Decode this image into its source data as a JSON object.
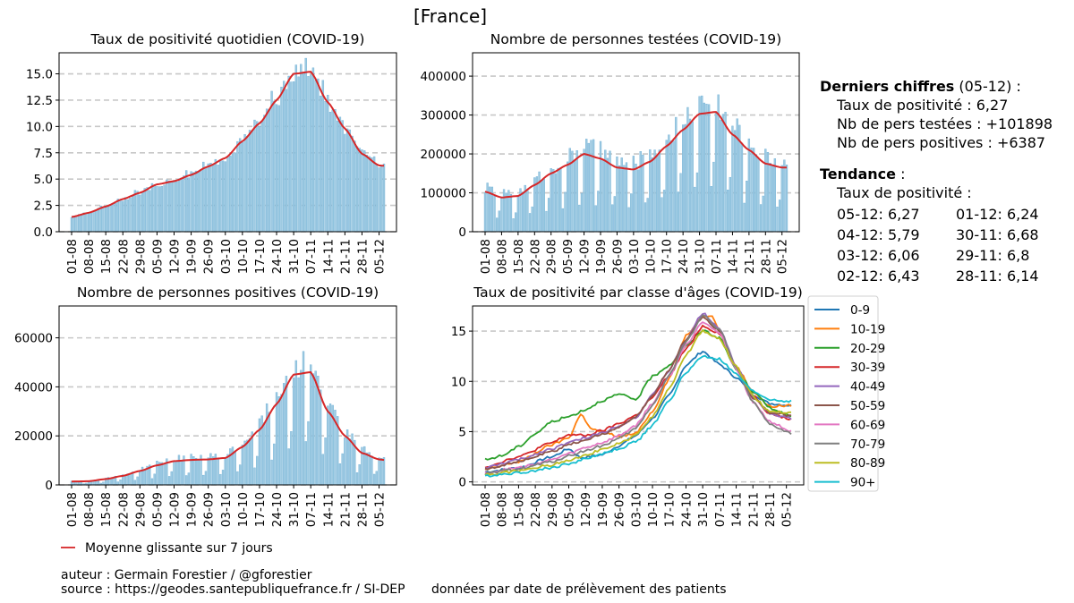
{
  "title": "[France]",
  "dates": [
    "01-08",
    "08-08",
    "15-08",
    "22-08",
    "29-08",
    "05-09",
    "12-09",
    "19-09",
    "26-09",
    "03-10",
    "10-10",
    "17-10",
    "24-10",
    "31-10",
    "07-11",
    "14-11",
    "21-11",
    "28-11",
    "05-12"
  ],
  "chart_data": [
    {
      "id": "taux",
      "type": "bar",
      "title": "Taux de positivité quotidien (COVID-19)",
      "ylim": [
        0,
        17
      ],
      "yticks": [
        0.0,
        2.5,
        5.0,
        7.5,
        10.0,
        12.5,
        15.0
      ],
      "ytick_labels": [
        "0.0",
        "2.5",
        "5.0",
        "7.5",
        "10.0",
        "12.5",
        "15.0"
      ],
      "legend_series": "Moyenne glissante sur 7 jours",
      "keypoints": [
        [
          0,
          1.4
        ],
        [
          7,
          1.8
        ],
        [
          14,
          2.4
        ],
        [
          21,
          3.1
        ],
        [
          28,
          3.7
        ],
        [
          35,
          4.5
        ],
        [
          42,
          4.8
        ],
        [
          49,
          5.4
        ],
        [
          56,
          6.2
        ],
        [
          63,
          7.0
        ],
        [
          70,
          8.6
        ],
        [
          77,
          10.3
        ],
        [
          84,
          12.5
        ],
        [
          91,
          15.0
        ],
        [
          98,
          15.2
        ],
        [
          105,
          12.3
        ],
        [
          112,
          9.8
        ],
        [
          119,
          7.4
        ],
        [
          126,
          6.3
        ],
        [
          128,
          6.27
        ]
      ]
    },
    {
      "id": "tests",
      "type": "bar",
      "title": "Nombre de personnes testées (COVID-19)",
      "ylim": [
        0,
        460000
      ],
      "yticks": [
        0,
        100000,
        200000,
        300000,
        400000
      ],
      "ytick_labels": [
        "0",
        "100000",
        "200000",
        "300000",
        "400000"
      ],
      "keypoints": [
        [
          0,
          103000
        ],
        [
          7,
          88000
        ],
        [
          14,
          92000
        ],
        [
          21,
          120000
        ],
        [
          28,
          150000
        ],
        [
          35,
          172000
        ],
        [
          42,
          200000
        ],
        [
          49,
          188000
        ],
        [
          56,
          165000
        ],
        [
          63,
          160000
        ],
        [
          70,
          180000
        ],
        [
          77,
          220000
        ],
        [
          84,
          262000
        ],
        [
          91,
          303000
        ],
        [
          98,
          308000
        ],
        [
          105,
          250000
        ],
        [
          112,
          210000
        ],
        [
          119,
          175000
        ],
        [
          126,
          165000
        ],
        [
          128,
          165000
        ]
      ]
    },
    {
      "id": "positives",
      "type": "bar",
      "title": "Nombre de personnes positives (COVID-19)",
      "ylim": [
        0,
        73000
      ],
      "yticks": [
        0,
        20000,
        40000,
        60000
      ],
      "ytick_labels": [
        "0",
        "20000",
        "40000",
        "60000"
      ],
      "keypoints": [
        [
          0,
          1400
        ],
        [
          7,
          1500
        ],
        [
          14,
          2400
        ],
        [
          21,
          3700
        ],
        [
          28,
          5700
        ],
        [
          35,
          8000
        ],
        [
          42,
          9700
        ],
        [
          49,
          10200
        ],
        [
          56,
          10400
        ],
        [
          63,
          11000
        ],
        [
          70,
          15500
        ],
        [
          77,
          22500
        ],
        [
          84,
          33000
        ],
        [
          91,
          45000
        ],
        [
          98,
          46000
        ],
        [
          105,
          30000
        ],
        [
          112,
          20000
        ],
        [
          119,
          13000
        ],
        [
          126,
          10400
        ],
        [
          128,
          10200
        ]
      ]
    },
    {
      "id": "ages",
      "type": "line",
      "title": "Taux de positivité par classe d'âges (COVID-19)",
      "ylim": [
        -0.3,
        17.5
      ],
      "yticks": [
        0,
        5,
        10,
        15
      ],
      "ytick_labels": [
        "0",
        "5",
        "10",
        "15"
      ],
      "series": [
        {
          "name": "0-9",
          "color": "#1f77b4",
          "keypoints": [
            [
              0,
              1.0
            ],
            [
              14,
              1.4
            ],
            [
              28,
              2.5
            ],
            [
              35,
              3.3
            ],
            [
              40,
              2.4
            ],
            [
              49,
              2.7
            ],
            [
              56,
              3.6
            ],
            [
              63,
              4.6
            ],
            [
              70,
              6.3
            ],
            [
              77,
              8.6
            ],
            [
              84,
              11.6
            ],
            [
              91,
              13.0
            ],
            [
              98,
              11.7
            ],
            [
              105,
              10.4
            ],
            [
              112,
              8.7
            ],
            [
              119,
              7.8
            ],
            [
              128,
              7.6
            ]
          ]
        },
        {
          "name": "10-19",
          "color": "#ff7f0e",
          "keypoints": [
            [
              0,
              1.2
            ],
            [
              14,
              2.0
            ],
            [
              28,
              3.7
            ],
            [
              35,
              4.4
            ],
            [
              40,
              6.7
            ],
            [
              45,
              5.2
            ],
            [
              49,
              5.0
            ],
            [
              56,
              4.5
            ],
            [
              63,
              4.8
            ],
            [
              70,
              7.0
            ],
            [
              77,
              10.3
            ],
            [
              84,
              14.5
            ],
            [
              91,
              16.5
            ],
            [
              95,
              16.6
            ],
            [
              98,
              15.0
            ],
            [
              105,
              11.5
            ],
            [
              112,
              9.0
            ],
            [
              119,
              7.5
            ],
            [
              128,
              7.6
            ]
          ]
        },
        {
          "name": "20-29",
          "color": "#2ca02c",
          "keypoints": [
            [
              0,
              2.2
            ],
            [
              7,
              2.6
            ],
            [
              14,
              3.5
            ],
            [
              21,
              4.8
            ],
            [
              28,
              6.0
            ],
            [
              35,
              6.5
            ],
            [
              42,
              7.2
            ],
            [
              49,
              8.1
            ],
            [
              56,
              8.7
            ],
            [
              63,
              8.2
            ],
            [
              70,
              10.5
            ],
            [
              77,
              11.6
            ],
            [
              84,
              13.5
            ],
            [
              91,
              15.1
            ],
            [
              98,
              14.3
            ],
            [
              105,
              11.2
            ],
            [
              112,
              9.0
            ],
            [
              119,
              7.4
            ],
            [
              128,
              6.5
            ]
          ]
        },
        {
          "name": "30-39",
          "color": "#d62728",
          "keypoints": [
            [
              0,
              1.5
            ],
            [
              14,
              2.5
            ],
            [
              28,
              3.9
            ],
            [
              35,
              4.7
            ],
            [
              42,
              4.6
            ],
            [
              49,
              5.1
            ],
            [
              56,
              5.8
            ],
            [
              63,
              6.6
            ],
            [
              70,
              8.4
            ],
            [
              77,
              10.6
            ],
            [
              84,
              13.2
            ],
            [
              91,
              15.5
            ],
            [
              98,
              14.8
            ],
            [
              105,
              11.4
            ],
            [
              112,
              8.6
            ],
            [
              119,
              6.8
            ],
            [
              128,
              6.2
            ]
          ]
        },
        {
          "name": "40-49",
          "color": "#9467bd",
          "keypoints": [
            [
              0,
              1.4
            ],
            [
              14,
              2.2
            ],
            [
              28,
              3.3
            ],
            [
              35,
              3.9
            ],
            [
              42,
              4.4
            ],
            [
              49,
              4.9
            ],
            [
              56,
              5.6
            ],
            [
              63,
              6.4
            ],
            [
              70,
              8.6
            ],
            [
              77,
              11.1
            ],
            [
              84,
              14.1
            ],
            [
              91,
              16.8
            ],
            [
              98,
              15.3
            ],
            [
              105,
              11.5
            ],
            [
              112,
              8.5
            ],
            [
              119,
              6.8
            ],
            [
              128,
              6.3
            ]
          ]
        },
        {
          "name": "50-59",
          "color": "#8c564b",
          "keypoints": [
            [
              0,
              1.3
            ],
            [
              14,
              2.0
            ],
            [
              28,
              3.0
            ],
            [
              35,
              3.7
            ],
            [
              42,
              4.2
            ],
            [
              49,
              4.7
            ],
            [
              56,
              5.5
            ],
            [
              63,
              6.4
            ],
            [
              70,
              8.6
            ],
            [
              77,
              11.2
            ],
            [
              84,
              14.2
            ],
            [
              91,
              16.4
            ],
            [
              98,
              15.0
            ],
            [
              105,
              11.3
            ],
            [
              112,
              8.4
            ],
            [
              119,
              6.9
            ],
            [
              128,
              6.6
            ]
          ]
        },
        {
          "name": "60-69",
          "color": "#e377c2",
          "keypoints": [
            [
              0,
              0.9
            ],
            [
              14,
              1.4
            ],
            [
              28,
              2.2
            ],
            [
              35,
              2.8
            ],
            [
              42,
              3.4
            ],
            [
              49,
              3.9
            ],
            [
              56,
              4.6
            ],
            [
              63,
              5.6
            ],
            [
              70,
              7.8
            ],
            [
              77,
              10.5
            ],
            [
              84,
              13.6
            ],
            [
              91,
              16.0
            ],
            [
              98,
              14.8
            ],
            [
              105,
              11.2
            ],
            [
              112,
              8.0
            ],
            [
              119,
              6.0
            ],
            [
              128,
              5.0
            ]
          ]
        },
        {
          "name": "70-79",
          "color": "#7f7f7f",
          "keypoints": [
            [
              0,
              0.8
            ],
            [
              14,
              1.3
            ],
            [
              28,
              2.0
            ],
            [
              35,
              2.6
            ],
            [
              42,
              3.1
            ],
            [
              49,
              3.6
            ],
            [
              56,
              4.3
            ],
            [
              63,
              5.3
            ],
            [
              70,
              7.6
            ],
            [
              77,
              10.6
            ],
            [
              84,
              13.9
            ],
            [
              91,
              16.6
            ],
            [
              98,
              15.2
            ],
            [
              105,
              11.4
            ],
            [
              112,
              7.9
            ],
            [
              119,
              5.7
            ],
            [
              128,
              4.8
            ]
          ]
        },
        {
          "name": "80-89",
          "color": "#bcbd22",
          "keypoints": [
            [
              0,
              0.7
            ],
            [
              14,
              1.1
            ],
            [
              28,
              1.7
            ],
            [
              35,
              2.2
            ],
            [
              42,
              2.7
            ],
            [
              49,
              3.2
            ],
            [
              56,
              3.8
            ],
            [
              63,
              4.6
            ],
            [
              70,
              6.5
            ],
            [
              77,
              9.3
            ],
            [
              84,
              12.6
            ],
            [
              91,
              15.0
            ],
            [
              98,
              14.2
            ],
            [
              105,
              11.5
            ],
            [
              112,
              8.5
            ],
            [
              119,
              7.0
            ],
            [
              128,
              6.9
            ]
          ]
        },
        {
          "name": "90+",
          "color": "#17becf",
          "keypoints": [
            [
              0,
              0.6
            ],
            [
              14,
              0.9
            ],
            [
              28,
              1.4
            ],
            [
              35,
              1.8
            ],
            [
              42,
              2.3
            ],
            [
              49,
              2.8
            ],
            [
              56,
              3.3
            ],
            [
              63,
              4.0
            ],
            [
              70,
              5.6
            ],
            [
              77,
              8.1
            ],
            [
              84,
              10.9
            ],
            [
              91,
              12.5
            ],
            [
              98,
              12.2
            ],
            [
              105,
              10.7
            ],
            [
              112,
              9.0
            ],
            [
              119,
              8.2
            ],
            [
              128,
              8.0
            ]
          ]
        }
      ]
    }
  ],
  "side": {
    "heading": "Derniers chiffres",
    "heading_date": " (05-12) :",
    "taux_line": "Taux de positivité : 6,27",
    "tests_line": "Nb de pers testées : +101898",
    "pos_line": "Nb de pers positives : +6387",
    "tendance": "Tendance",
    "tendance_colon": " :",
    "tendance_sub": "Taux de positivité :",
    "tendance_values": [
      "05-12: 6,27",
      "01-12: 6,24",
      "04-12: 5,79",
      "30-11: 6,68",
      "03-12: 6,06",
      "29-11: 6,8",
      "02-12: 6,43",
      "28-11: 6,14"
    ]
  },
  "footer": {
    "legend_label": "Moyenne glissante sur 7 jours",
    "author": "auteur : Germain Forestier / @gforestier",
    "source": "source : https://geodes.santepubliquefrance.fr / SI-DEP",
    "note": "données par date de prélèvement des patients"
  },
  "colors": {
    "bar": "#9ecae1",
    "bar_edge": "#6baed6",
    "mean": "#d62728",
    "grid": "#c8c8c8"
  }
}
